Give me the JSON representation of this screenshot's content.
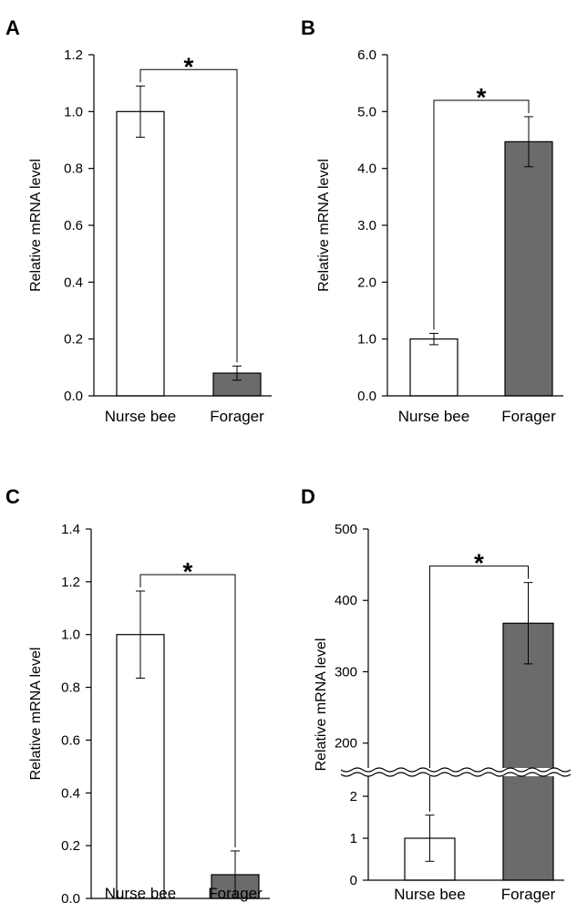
{
  "chart_data": [
    {
      "panel": "A",
      "type": "bar",
      "categories": [
        "Nurse bee",
        "Forager"
      ],
      "values": [
        1.0,
        0.08
      ],
      "errors": [
        0.09,
        0.025
      ],
      "bar_colors": [
        "#ffffff",
        "#6b6b6b"
      ],
      "ylabel": "Relative mRNA level",
      "ylim": [
        0,
        1.2
      ],
      "yticks": [
        "0.0",
        "0.2",
        "0.4",
        "0.6",
        "0.8",
        "1.0",
        "1.2"
      ],
      "significance": "*"
    },
    {
      "panel": "B",
      "type": "bar",
      "categories": [
        "Nurse bee",
        "Forager"
      ],
      "values": [
        1.0,
        4.47
      ],
      "errors": [
        0.1,
        0.44
      ],
      "bar_colors": [
        "#ffffff",
        "#6b6b6b"
      ],
      "ylabel": "Relative mRNA level",
      "ylim": [
        0,
        6.0
      ],
      "yticks": [
        "0.0",
        "1.0",
        "2.0",
        "3.0",
        "4.0",
        "5.0",
        "6.0"
      ],
      "significance": "*"
    },
    {
      "panel": "C",
      "type": "bar",
      "categories": [
        "Nurse bee",
        "Forager"
      ],
      "values": [
        1.0,
        0.09
      ],
      "errors": [
        0.165,
        0.09
      ],
      "bar_colors": [
        "#ffffff",
        "#6b6b6b"
      ],
      "ylabel": "Relative mRNA level",
      "ylim": [
        0,
        1.4
      ],
      "yticks": [
        "0.0",
        "0.2",
        "0.4",
        "0.6",
        "0.8",
        "1.0",
        "1.2",
        "1.4"
      ],
      "significance": "*"
    },
    {
      "panel": "D",
      "type": "bar",
      "categories": [
        "Nurse bee",
        "Forager"
      ],
      "values": [
        1.0,
        368
      ],
      "errors": [
        0.55,
        57
      ],
      "bar_colors": [
        "#ffffff",
        "#6b6b6b"
      ],
      "ylabel": "Relative mRNA level",
      "broken_axis": true,
      "lower_ylim": [
        0,
        2.5
      ],
      "upper_ylim": [
        160,
        500
      ],
      "yticks_lower": [
        "0",
        "1",
        "2"
      ],
      "yticks_upper": [
        "200",
        "300",
        "400",
        "500"
      ],
      "significance": "*"
    }
  ]
}
